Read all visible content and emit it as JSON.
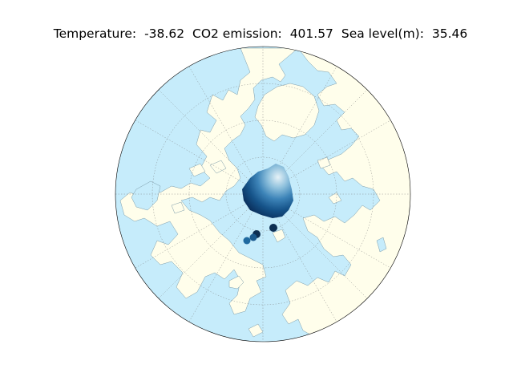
{
  "title": {
    "temperature_label": "Temperature:",
    "temperature_value": "-38.62",
    "co2_label": "CO2 emission:",
    "co2_value": "401.57",
    "sea_level_label": "Sea level(m):",
    "sea_level_value": "35.46"
  },
  "map": {
    "projection": "north-polar-stereographic",
    "ocean_color": "#c6ecfb",
    "land_color": "#fffeeb",
    "coastline_color": "#7a9aa8",
    "graticule": true,
    "ice_colormap": [
      "#e8f4f8",
      "#9ecae1",
      "#4a90c2",
      "#1f5f96",
      "#0b3d6e",
      "#08224a"
    ]
  }
}
